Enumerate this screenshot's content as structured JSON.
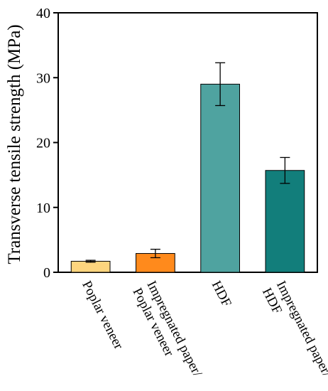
{
  "chart_data": {
    "type": "bar",
    "title": "",
    "xlabel": "",
    "ylabel": "Transverse tensile strength (MPa)",
    "ylim": [
      0,
      40
    ],
    "yticks": [
      0,
      10,
      20,
      30,
      40
    ],
    "grid": false,
    "categories": [
      [
        "Poplar veneer"
      ],
      [
        "Impregnated paper/",
        "Poplar veneer"
      ],
      [
        "HDF"
      ],
      [
        "Impregnated paper/",
        "HDF"
      ]
    ],
    "values": [
      1.7,
      2.9,
      29.0,
      15.7
    ],
    "errors": [
      0.15,
      0.65,
      3.3,
      2.0
    ],
    "colors": [
      "#FDD57E",
      "#FF8A1C",
      "#4FA3A0",
      "#127E7B"
    ]
  }
}
